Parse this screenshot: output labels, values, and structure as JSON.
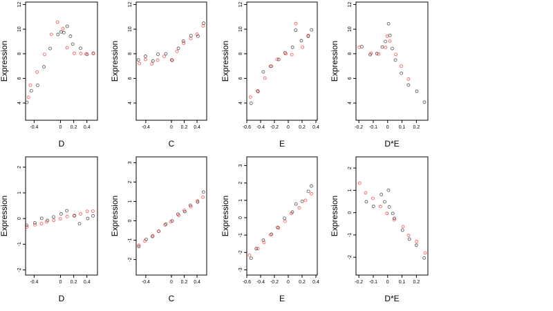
{
  "chart_data": [
    {
      "type": "scatter",
      "xlabel": "D",
      "ylabel": "Expression",
      "xlim": [
        -0.53,
        0.56
      ],
      "ylim": [
        2.6,
        12.2
      ],
      "xticks": [
        -0.4,
        0.0,
        0.2,
        0.4
      ],
      "yticks": [
        4,
        6,
        8,
        10,
        12
      ],
      "series": [
        {
          "color": "#000000",
          "x": [
            -0.5,
            -0.45,
            -0.35,
            -0.25,
            -0.15,
            -0.05,
            0.0,
            0.05,
            0.1,
            0.15,
            0.2,
            0.3,
            0.4,
            0.5
          ],
          "y": [
            4.0,
            5.0,
            5.5,
            7.0,
            8.5,
            9.5,
            9.8,
            9.8,
            10.2,
            9.5,
            8.8,
            8.5,
            8.0,
            8.0
          ]
        },
        {
          "color": "#ff0000",
          "x": [
            -0.5,
            -0.45,
            -0.35,
            -0.25,
            -0.15,
            -0.05,
            0.05,
            0.1,
            0.2,
            0.3,
            0.4,
            0.5
          ],
          "y": [
            4.5,
            5.5,
            6.5,
            8.0,
            9.5,
            10.5,
            10.0,
            8.5,
            8.0,
            8.0,
            8.0,
            8.0
          ]
        }
      ]
    },
    {
      "type": "scatter",
      "xlabel": "C",
      "ylabel": "Expression",
      "xlim": [
        -0.55,
        0.55
      ],
      "ylim": [
        2.6,
        12.2
      ],
      "xticks": [
        -0.4,
        0.0,
        0.2,
        0.4
      ],
      "yticks": [
        4,
        6,
        8,
        10,
        12
      ],
      "series": [
        {
          "color": "#000000",
          "x": [
            -0.5,
            -0.4,
            -0.3,
            -0.2,
            -0.1,
            0.0,
            0.1,
            0.2,
            0.3,
            0.4,
            0.5
          ],
          "y": [
            7.5,
            7.8,
            7.5,
            8.0,
            8.0,
            7.5,
            8.5,
            9.0,
            9.5,
            9.5,
            10.5
          ]
        },
        {
          "color": "#ff0000",
          "x": [
            -0.5,
            -0.4,
            -0.3,
            -0.2,
            -0.1,
            0.0,
            0.1,
            0.2,
            0.3,
            0.4,
            0.5
          ],
          "y": [
            7.2,
            7.5,
            7.2,
            7.5,
            7.8,
            7.5,
            8.2,
            8.8,
            9.2,
            9.5,
            10.2
          ]
        }
      ]
    },
    {
      "type": "scatter",
      "xlabel": "E",
      "ylabel": "Expression",
      "xlim": [
        -0.6,
        0.42
      ],
      "ylim": [
        2.6,
        12.2
      ],
      "xticks": [
        -0.6,
        -0.4,
        -0.2,
        0.0,
        0.2,
        0.4
      ],
      "yticks": [
        4,
        6,
        8,
        10,
        12
      ],
      "series": [
        {
          "color": "#000000",
          "x": [
            -0.55,
            -0.45,
            -0.35,
            -0.25,
            -0.15,
            -0.05,
            0.05,
            0.12,
            0.2,
            0.3,
            0.35
          ],
          "y": [
            4.0,
            5.0,
            6.5,
            7.0,
            7.5,
            8.0,
            8.5,
            10.0,
            9.0,
            9.5,
            10.0
          ]
        },
        {
          "color": "#ff0000",
          "x": [
            -0.55,
            -0.45,
            -0.35,
            -0.25,
            -0.15,
            -0.05,
            0.05,
            0.12,
            0.2,
            0.3
          ],
          "y": [
            4.5,
            5.0,
            6.0,
            7.0,
            7.5,
            8.0,
            8.0,
            10.5,
            8.5,
            9.5
          ]
        }
      ]
    },
    {
      "type": "scatter",
      "xlabel": "D*E",
      "ylabel": "Expression",
      "xlim": [
        -0.22,
        0.28
      ],
      "ylim": [
        2.6,
        12.2
      ],
      "xticks": [
        -0.2,
        -0.1,
        0.0,
        0.1,
        0.2
      ],
      "yticks": [
        4,
        6,
        8,
        10,
        12
      ],
      "series": [
        {
          "color": "#000000",
          "x": [
            -0.18,
            -0.12,
            -0.08,
            -0.04,
            -0.01,
            0.0,
            0.01,
            0.03,
            0.06,
            0.1,
            0.15,
            0.2,
            0.25
          ],
          "y": [
            8.5,
            8.0,
            8.0,
            8.5,
            9.0,
            10.5,
            9.5,
            8.5,
            7.5,
            6.5,
            5.5,
            5.0,
            4.0
          ]
        },
        {
          "color": "#ff0000",
          "x": [
            -0.2,
            -0.12,
            -0.06,
            -0.02,
            0.0,
            0.02,
            0.05,
            0.1,
            0.15
          ],
          "y": [
            8.5,
            8.0,
            8.0,
            8.5,
            9.5,
            9.0,
            8.0,
            7.0,
            6.0
          ]
        }
      ]
    },
    {
      "type": "scatter",
      "xlabel": "D",
      "ylabel": "Expression",
      "xlim": [
        -0.53,
        0.56
      ],
      "ylim": [
        -2.2,
        2.4
      ],
      "xticks": [
        -0.4,
        0.0,
        0.2,
        0.4
      ],
      "yticks": [
        -2,
        -1,
        0,
        1,
        2
      ],
      "series": [
        {
          "color": "#000000",
          "x": [
            -0.5,
            -0.4,
            -0.3,
            -0.2,
            -0.1,
            0.0,
            0.1,
            0.2,
            0.3,
            0.4,
            0.5
          ],
          "y": [
            -0.3,
            -0.2,
            0.0,
            -0.1,
            0.1,
            0.2,
            0.3,
            0.1,
            -0.2,
            0.0,
            0.1
          ]
        },
        {
          "color": "#ff0000",
          "x": [
            -0.5,
            -0.4,
            -0.3,
            -0.2,
            -0.1,
            0.0,
            0.1,
            0.2,
            0.3,
            0.4,
            0.5
          ],
          "y": [
            -0.32,
            -0.26,
            -0.19,
            -0.13,
            -0.06,
            0.0,
            0.06,
            0.13,
            0.19,
            0.26,
            0.32
          ]
        }
      ]
    },
    {
      "type": "scatter",
      "xlabel": "C",
      "ylabel": "Expression",
      "xlim": [
        -0.55,
        0.55
      ],
      "ylim": [
        -2.8,
        3.3
      ],
      "xticks": [
        -0.4,
        0.0,
        0.2,
        0.4
      ],
      "yticks": [
        -2,
        -1,
        0,
        1,
        2,
        3
      ],
      "series": [
        {
          "color": "#000000",
          "x": [
            -0.5,
            -0.4,
            -0.3,
            -0.2,
            -0.1,
            0.0,
            0.1,
            0.2,
            0.3,
            0.4,
            0.5
          ],
          "y": [
            -1.3,
            -1.0,
            -0.8,
            -0.5,
            -0.2,
            0.0,
            0.3,
            0.5,
            0.8,
            1.0,
            1.5
          ]
        },
        {
          "color": "#ff0000",
          "x": [
            -0.5,
            -0.4,
            -0.3,
            -0.2,
            -0.1,
            0.0,
            0.1,
            0.2,
            0.3,
            0.4,
            0.5
          ],
          "y": [
            -1.25,
            -1.0,
            -0.75,
            -0.5,
            -0.25,
            0.0,
            0.25,
            0.5,
            0.75,
            1.0,
            1.25
          ]
        }
      ]
    },
    {
      "type": "scatter",
      "xlabel": "E",
      "ylabel": "Expression",
      "xlim": [
        -0.6,
        0.42
      ],
      "ylim": [
        -3.3,
        3.5
      ],
      "xticks": [
        -0.6,
        -0.4,
        -0.2,
        0.0,
        0.2,
        0.4
      ],
      "yticks": [
        -3,
        -2,
        -1,
        0,
        1,
        2,
        3
      ],
      "series": [
        {
          "color": "#000000",
          "x": [
            -0.55,
            -0.45,
            -0.35,
            -0.25,
            -0.15,
            -0.05,
            0.05,
            0.12,
            0.2,
            0.3,
            0.35
          ],
          "y": [
            -2.3,
            -1.8,
            -1.3,
            -1.0,
            -0.5,
            0.0,
            0.3,
            0.8,
            1.0,
            1.5,
            1.8
          ]
        },
        {
          "color": "#ff0000",
          "x": [
            -0.56,
            -0.45,
            -0.35,
            -0.25,
            -0.15,
            -0.05,
            0.05,
            0.15,
            0.25,
            0.35
          ],
          "y": [
            -2.2,
            -1.8,
            -1.4,
            -1.0,
            -0.6,
            -0.2,
            0.2,
            0.6,
            1.0,
            1.4
          ]
        }
      ]
    },
    {
      "type": "scatter",
      "xlabel": "D*E",
      "ylabel": "Expression",
      "xlim": [
        -0.22,
        0.28
      ],
      "ylim": [
        -2.8,
        2.5
      ],
      "xticks": [
        -0.2,
        -0.1,
        0.0,
        0.1,
        0.2
      ],
      "yticks": [
        -2,
        -1,
        0,
        1,
        2
      ],
      "series": [
        {
          "color": "#000000",
          "x": [
            -0.15,
            -0.1,
            -0.05,
            -0.02,
            0.0,
            0.01,
            0.03,
            0.05,
            0.1,
            0.15,
            0.2,
            0.25
          ],
          "y": [
            0.5,
            0.3,
            0.8,
            0.5,
            1.0,
            0.3,
            0.0,
            -0.3,
            -0.8,
            -1.2,
            -1.5,
            -2.0
          ]
        },
        {
          "color": "#ff0000",
          "x": [
            -0.2,
            -0.15,
            -0.1,
            -0.05,
            0.0,
            0.05,
            0.1,
            0.15,
            0.2,
            0.26
          ],
          "y": [
            1.3,
            0.9,
            0.6,
            0.3,
            0.0,
            -0.3,
            -0.6,
            -1.0,
            -1.3,
            -1.8
          ]
        }
      ]
    }
  ]
}
